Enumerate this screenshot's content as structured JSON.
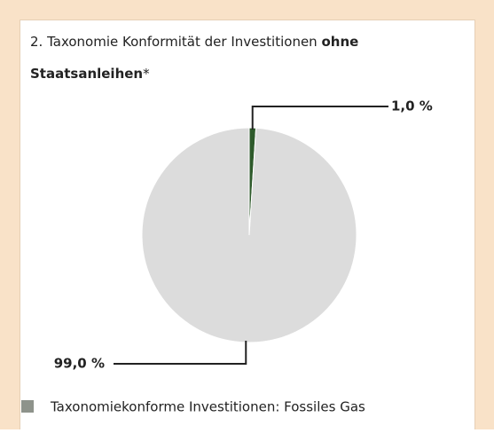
{
  "chart_data": {
    "type": "pie",
    "title": [
      "2. Taxonomie Konformität der Investitionen ",
      "ohne",
      "Staatsanleihen",
      "*"
    ],
    "categories": [
      "Taxonomiekonforme Investitionen: Fossiles Gas",
      null
    ],
    "values": [
      1.0,
      99.0
    ],
    "value_labels": [
      "1,0 %",
      "99,0 %"
    ],
    "colors": [
      "#2e5a2b",
      "#dcdcdc"
    ],
    "legend_color": "#8e938b"
  }
}
